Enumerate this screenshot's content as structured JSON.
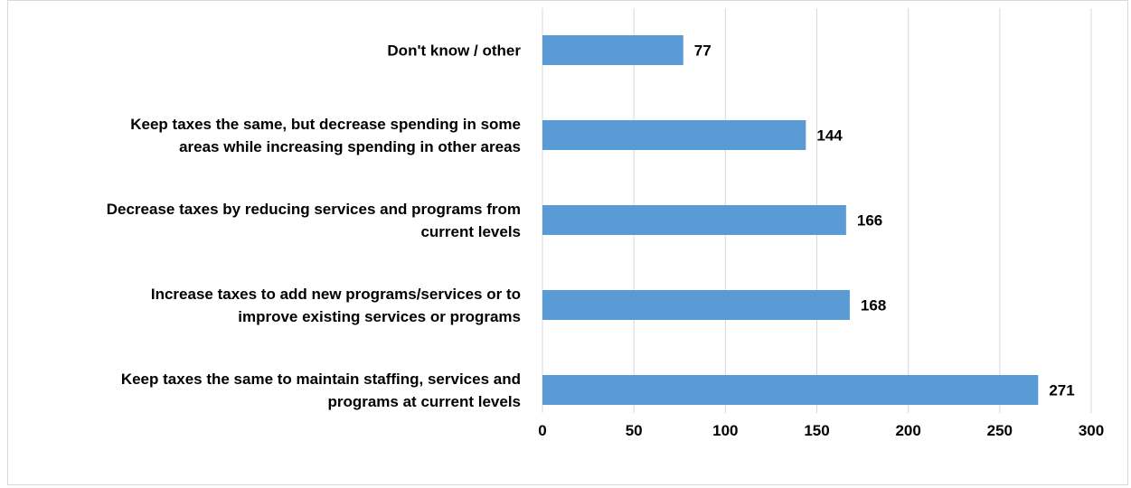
{
  "chart_data": {
    "type": "bar",
    "orientation": "horizontal",
    "categories": [
      "Don't know / other",
      "Keep taxes the same, but decrease spending in some areas while increasing spending in other areas",
      "Decrease taxes by reducing services and programs from current levels",
      "Increase taxes to add new programs/services or to improve existing services or programs",
      "Keep taxes the same to maintain staffing, services and programs at current levels"
    ],
    "category_label_lines": [
      [
        "Don't know / other"
      ],
      [
        "Keep taxes the same, but decrease spending in some",
        "areas while increasing spending in other areas"
      ],
      [
        "Decrease taxes by reducing services and programs from",
        "current levels"
      ],
      [
        "Increase taxes to add new programs/services or to",
        "improve existing services or programs"
      ],
      [
        "Keep taxes the same to maintain staffing, services and",
        "programs at current levels"
      ]
    ],
    "values": [
      77,
      144,
      166,
      168,
      271
    ],
    "data_labels": [
      "77",
      "144",
      "166",
      "168",
      "271"
    ],
    "xlim": [
      0,
      300
    ],
    "x_ticks": [
      0,
      50,
      100,
      150,
      200,
      250,
      300
    ],
    "x_tick_labels": [
      "0",
      "50",
      "100",
      "150",
      "200",
      "250",
      "300"
    ],
    "grid": true,
    "legend": "none",
    "colors": {
      "bar": "#5b9bd5",
      "grid": "#d9d9d9",
      "text": "#000000",
      "border": "#d9d9d9"
    }
  }
}
